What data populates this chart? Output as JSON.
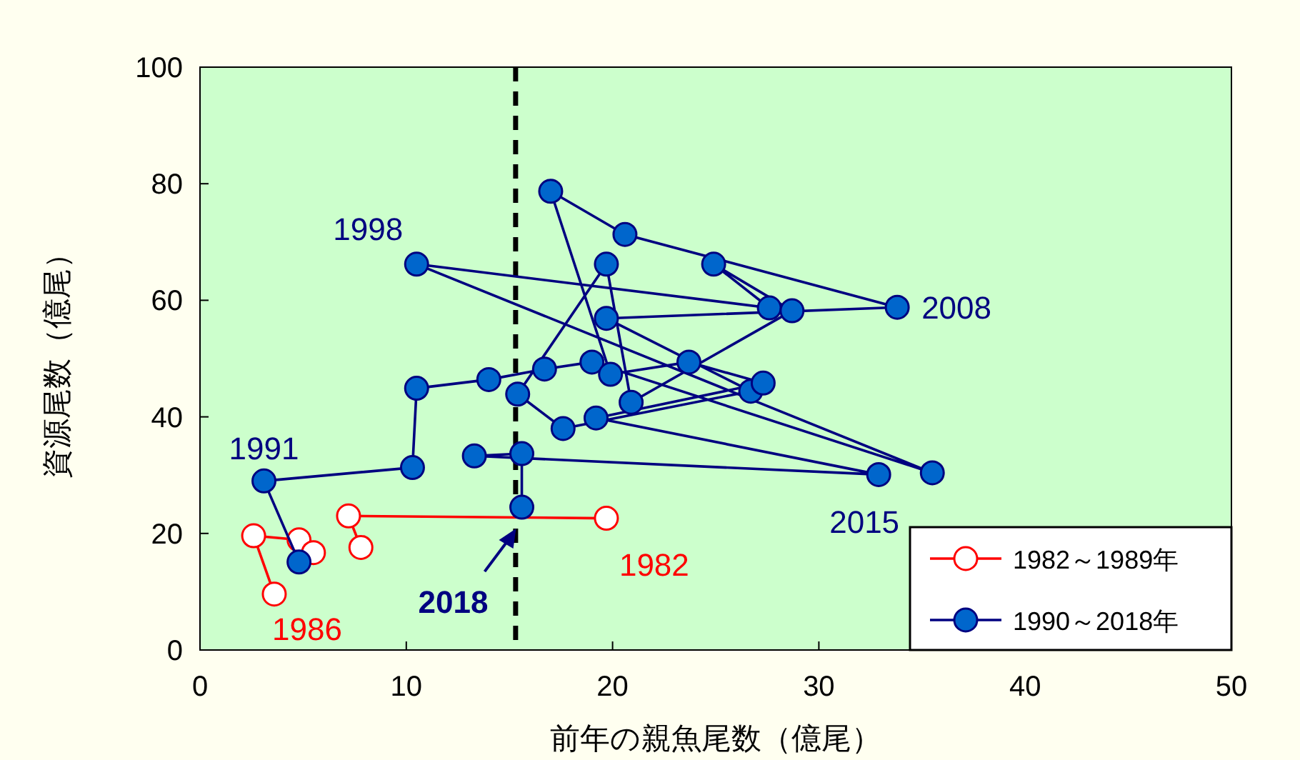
{
  "chart_data": {
    "type": "line",
    "xlabel": "前年の親魚尾数（億尾）",
    "ylabel": "資源尾数（億尾）",
    "xlim": [
      0,
      50
    ],
    "xticks": [
      0,
      10,
      20,
      30,
      40,
      50
    ],
    "ylim": [
      0,
      100
    ],
    "yticks": [
      0,
      20,
      40,
      60,
      80,
      100
    ],
    "marker": "circle",
    "legend": "bottom right",
    "grid": false,
    "series": [
      {
        "name": "1982～1989年",
        "color": "#ff0000",
        "x": [
          19.7,
          7.2,
          7.8,
          5.3,
          3.6,
          2.6,
          4.8,
          5.5
        ],
        "values": [
          22.6,
          23.0,
          17.6,
          null,
          9.6,
          19.6,
          18.9,
          16.7
        ]
      },
      {
        "name": "1990～2018年",
        "color": "#0066cc",
        "x": [
          4.8,
          3.1,
          10.3,
          10.5,
          14.0,
          16.7,
          19.0,
          35.5,
          10.5,
          27.6,
          24.9,
          28.7,
          20.9,
          19.7,
          15.4,
          17.6,
          26.7,
          19.7,
          33.8,
          20.6,
          17.0,
          19.9,
          23.7,
          27.3,
          19.2,
          32.9,
          13.3,
          15.6,
          15.6
        ],
        "values": [
          15.1,
          29.0,
          31.3,
          44.9,
          46.4,
          48.2,
          49.4,
          30.4,
          66.2,
          58.7,
          66.2,
          58.2,
          42.5,
          66.2,
          43.9,
          38.0,
          44.4,
          56.9,
          58.8,
          71.3,
          78.7,
          47.3,
          49.4,
          45.8,
          39.8,
          30.1,
          33.3,
          33.7,
          24.5
        ]
      }
    ],
    "ref_lines": [
      {
        "axis": "x",
        "value": 15.3,
        "color": "#000000",
        "line_style": "dashed"
      }
    ],
    "annotations": [
      {
        "text": "1982",
        "x": 19.7,
        "y": 22.6
      },
      {
        "text": "1986",
        "x": 3.6,
        "y": 9.6
      },
      {
        "text": "1991",
        "x": 3.1,
        "y": 29.0
      },
      {
        "text": "1998",
        "x": 10.5,
        "y": 66.2
      },
      {
        "text": "2008",
        "x": 33.8,
        "y": 58.8
      },
      {
        "text": "2015",
        "x": 32.9,
        "y": 30.1
      },
      {
        "text": "2018",
        "x": 15.6,
        "y": 24.5
      }
    ]
  }
}
